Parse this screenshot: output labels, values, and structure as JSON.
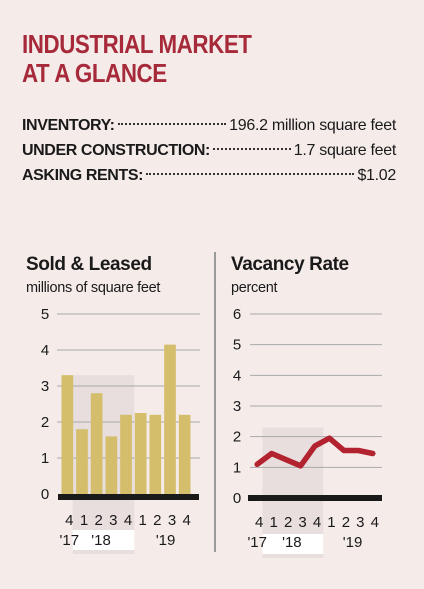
{
  "title": {
    "line1": "INDUSTRIAL MARKET",
    "line2": "AT A GLANCE"
  },
  "stats": [
    {
      "label": "INVENTORY:",
      "value": "196.2 million square feet"
    },
    {
      "label": "UNDER CONSTRUCTION:",
      "value": "1.7 square feet"
    },
    {
      "label": "ASKING RENTS:",
      "value": "$1.02"
    }
  ],
  "colors": {
    "title": "#a62a3a",
    "bars": "#d4bd6b",
    "line": "#b2222f",
    "band": "#e7dedd"
  },
  "chart_data": [
    {
      "type": "bar",
      "title": "Sold & Leased",
      "subtitle": "millions of square feet",
      "categories": [
        "4",
        "1",
        "2",
        "3",
        "4",
        "1",
        "2",
        "3",
        "4"
      ],
      "year_labels": [
        "'17",
        "'18",
        "'19"
      ],
      "values": [
        3.3,
        1.8,
        2.8,
        1.6,
        2.2,
        2.25,
        2.2,
        4.15,
        2.2
      ],
      "yticks": [
        0,
        1,
        2,
        3,
        4,
        5
      ],
      "ylim": [
        0,
        5
      ]
    },
    {
      "type": "line",
      "title": "Vacancy Rate",
      "subtitle": "percent",
      "categories": [
        "4",
        "1",
        "2",
        "3",
        "4",
        "1",
        "2",
        "3",
        "4"
      ],
      "year_labels": [
        "'17",
        "'18",
        "'19"
      ],
      "values": [
        1.1,
        1.45,
        1.25,
        1.05,
        1.7,
        1.95,
        1.55,
        1.55,
        1.45
      ],
      "yticks": [
        0,
        1,
        2,
        3,
        4,
        5,
        6
      ],
      "ylim": [
        0,
        6
      ]
    }
  ]
}
